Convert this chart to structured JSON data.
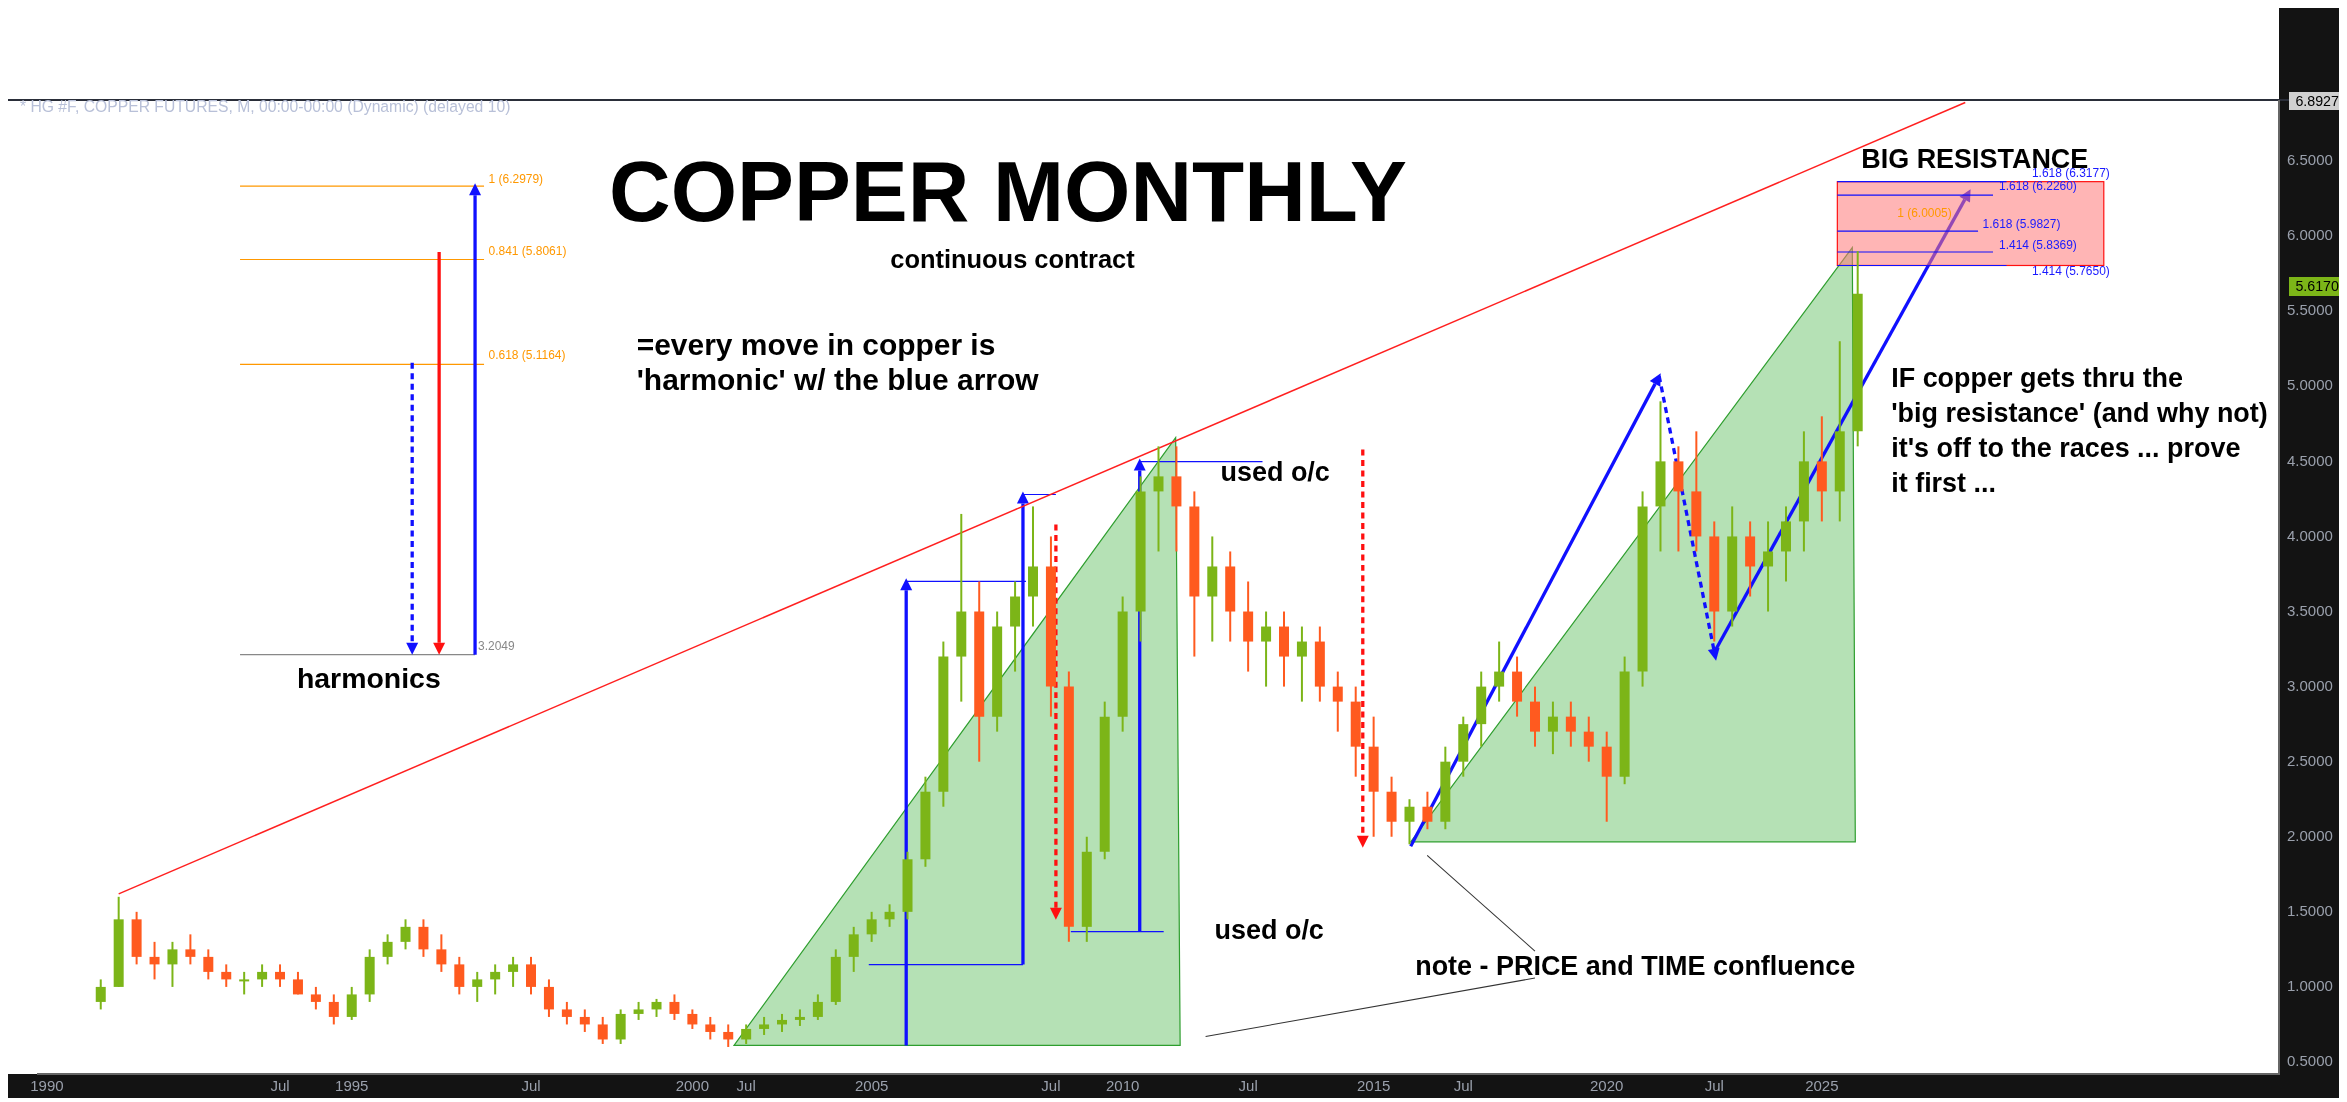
{
  "chart_data": {
    "type": "candlestick",
    "title": "COPPER MONTHLY",
    "subtitle": "continuous contract",
    "categories": [
      "1990",
      null,
      null,
      null,
      null,
      null,
      null,
      null,
      null,
      null,
      null,
      null,
      null,
      "Jul",
      null,
      null,
      null,
      "1995",
      null,
      null,
      null,
      null,
      null,
      null,
      null,
      null,
      null,
      "Jul",
      null,
      null,
      null,
      null,
      null,
      null,
      null,
      null,
      "2000",
      null,
      null,
      "Jul",
      null,
      null,
      null,
      null,
      null,
      null,
      "2005",
      null,
      null,
      null,
      null,
      null,
      null,
      null,
      null,
      null,
      "Jul",
      null,
      null,
      null,
      "2010",
      null,
      null,
      null,
      null,
      null,
      null,
      "Jul",
      null,
      null,
      null,
      null,
      null,
      null,
      "2015",
      null,
      null,
      null,
      null,
      "Jul",
      null,
      null,
      null,
      null,
      null,
      null,
      null,
      "2020",
      null,
      null,
      null,
      null,
      null,
      "Jul",
      null,
      null,
      null,
      null,
      null,
      "2025",
      null,
      null,
      null,
      null,
      null,
      null,
      null,
      null,
      null,
      null,
      null,
      null,
      null,
      null,
      null,
      null,
      null,
      null,
      null,
      null,
      null,
      null,
      null,
      null,
      null
    ],
    "ohlc": [
      null,
      null,
      null,
      [
        0.9,
        1.05,
        0.85,
        1.0
      ],
      [
        1.0,
        1.6,
        1.0,
        1.45
      ],
      [
        1.45,
        1.5,
        1.15,
        1.2
      ],
      [
        1.2,
        1.3,
        1.05,
        1.15
      ],
      [
        1.15,
        1.3,
        1.0,
        1.25
      ],
      [
        1.25,
        1.35,
        1.15,
        1.2
      ],
      [
        1.2,
        1.25,
        1.05,
        1.1
      ],
      [
        1.1,
        1.15,
        1.0,
        1.05
      ],
      [
        1.05,
        1.1,
        0.95,
        1.05
      ],
      [
        1.05,
        1.15,
        1.0,
        1.1
      ],
      [
        1.1,
        1.15,
        1.0,
        1.05
      ],
      [
        1.05,
        1.1,
        0.95,
        0.95
      ],
      [
        0.95,
        1.0,
        0.85,
        0.9
      ],
      [
        0.9,
        0.95,
        0.75,
        0.8
      ],
      [
        0.8,
        1.0,
        0.78,
        0.95
      ],
      [
        0.95,
        1.25,
        0.9,
        1.2
      ],
      [
        1.2,
        1.35,
        1.15,
        1.3
      ],
      [
        1.3,
        1.45,
        1.25,
        1.4
      ],
      [
        1.4,
        1.45,
        1.2,
        1.25
      ],
      [
        1.25,
        1.35,
        1.1,
        1.15
      ],
      [
        1.15,
        1.2,
        0.95,
        1.0
      ],
      [
        1.0,
        1.1,
        0.9,
        1.05
      ],
      [
        1.05,
        1.15,
        0.95,
        1.1
      ],
      [
        1.1,
        1.2,
        1.0,
        1.15
      ],
      [
        1.15,
        1.2,
        0.95,
        1.0
      ],
      [
        1.0,
        1.05,
        0.8,
        0.85
      ],
      [
        0.85,
        0.9,
        0.75,
        0.8
      ],
      [
        0.8,
        0.85,
        0.7,
        0.75
      ],
      [
        0.75,
        0.8,
        0.62,
        0.65
      ],
      [
        0.65,
        0.85,
        0.62,
        0.82
      ],
      [
        0.82,
        0.9,
        0.78,
        0.85
      ],
      [
        0.85,
        0.92,
        0.8,
        0.9
      ],
      [
        0.9,
        0.95,
        0.78,
        0.82
      ],
      [
        0.82,
        0.85,
        0.72,
        0.75
      ],
      [
        0.75,
        0.8,
        0.65,
        0.7
      ],
      [
        0.7,
        0.75,
        0.6,
        0.65
      ],
      [
        0.65,
        0.75,
        0.62,
        0.72
      ],
      [
        0.72,
        0.8,
        0.68,
        0.75
      ],
      [
        0.75,
        0.82,
        0.7,
        0.78
      ],
      [
        0.78,
        0.85,
        0.74,
        0.8
      ],
      [
        0.8,
        0.95,
        0.78,
        0.9
      ],
      [
        0.9,
        1.25,
        0.88,
        1.2
      ],
      [
        1.2,
        1.4,
        1.1,
        1.35
      ],
      [
        1.35,
        1.5,
        1.3,
        1.45
      ],
      [
        1.45,
        1.55,
        1.4,
        1.5
      ],
      [
        1.5,
        1.9,
        1.45,
        1.85
      ],
      [
        1.85,
        2.4,
        1.8,
        2.3
      ],
      [
        2.3,
        3.3,
        2.2,
        3.2
      ],
      [
        3.2,
        4.15,
        2.9,
        3.5
      ],
      [
        3.5,
        3.7,
        2.5,
        2.8
      ],
      [
        2.8,
        3.5,
        2.7,
        3.4
      ],
      [
        3.4,
        3.7,
        3.1,
        3.6
      ],
      [
        3.6,
        4.2,
        3.4,
        3.8
      ],
      [
        3.8,
        4.0,
        2.8,
        3.0
      ],
      [
        3.0,
        3.1,
        1.3,
        1.4
      ],
      [
        1.4,
        2.0,
        1.3,
        1.9
      ],
      [
        1.9,
        2.9,
        1.85,
        2.8
      ],
      [
        2.8,
        3.6,
        2.7,
        3.5
      ],
      [
        3.5,
        4.4,
        3.3,
        4.3
      ],
      [
        4.3,
        4.6,
        3.9,
        4.4
      ],
      [
        4.4,
        4.6,
        3.9,
        4.2
      ],
      [
        4.2,
        4.3,
        3.2,
        3.6
      ],
      [
        3.6,
        4.0,
        3.3,
        3.8
      ],
      [
        3.8,
        3.9,
        3.3,
        3.5
      ],
      [
        3.5,
        3.7,
        3.1,
        3.3
      ],
      [
        3.3,
        3.5,
        3.0,
        3.4
      ],
      [
        3.4,
        3.5,
        3.0,
        3.2
      ],
      [
        3.2,
        3.4,
        2.9,
        3.3
      ],
      [
        3.3,
        3.4,
        2.9,
        3.0
      ],
      [
        3.0,
        3.1,
        2.7,
        2.9
      ],
      [
        2.9,
        3.0,
        2.4,
        2.6
      ],
      [
        2.6,
        2.8,
        2.0,
        2.3
      ],
      [
        2.3,
        2.4,
        2.0,
        2.1
      ],
      [
        2.1,
        2.25,
        1.95,
        2.2
      ],
      [
        2.2,
        2.3,
        2.05,
        2.1
      ],
      [
        2.1,
        2.6,
        2.05,
        2.5
      ],
      [
        2.5,
        2.8,
        2.4,
        2.75
      ],
      [
        2.75,
        3.1,
        2.6,
        3.0
      ],
      [
        3.0,
        3.3,
        2.9,
        3.1
      ],
      [
        3.1,
        3.2,
        2.8,
        2.9
      ],
      [
        2.9,
        3.0,
        2.6,
        2.7
      ],
      [
        2.7,
        2.9,
        2.55,
        2.8
      ],
      [
        2.8,
        2.9,
        2.6,
        2.7
      ],
      [
        2.7,
        2.8,
        2.5,
        2.6
      ],
      [
        2.6,
        2.7,
        2.1,
        2.4
      ],
      [
        2.4,
        3.2,
        2.35,
        3.1
      ],
      [
        3.1,
        4.3,
        3.0,
        4.2
      ],
      [
        4.2,
        4.9,
        3.9,
        4.5
      ],
      [
        4.5,
        4.6,
        3.9,
        4.3
      ],
      [
        4.3,
        4.7,
        3.9,
        4.0
      ],
      [
        4.0,
        4.1,
        3.3,
        3.5
      ],
      [
        3.5,
        4.2,
        3.4,
        4.0
      ],
      [
        4.0,
        4.1,
        3.6,
        3.8
      ],
      [
        3.8,
        4.1,
        3.5,
        3.9
      ],
      [
        3.9,
        4.2,
        3.7,
        4.1
      ],
      [
        4.1,
        4.7,
        3.9,
        4.5
      ],
      [
        4.5,
        4.8,
        4.1,
        4.3
      ],
      [
        4.3,
        5.3,
        4.1,
        4.7
      ],
      [
        4.7,
        5.9,
        4.6,
        5.617
      ],
      null,
      null,
      null,
      null,
      null,
      null,
      null,
      null,
      null,
      null,
      null,
      null,
      null,
      null,
      null,
      null,
      null,
      null,
      null,
      null,
      null,
      null,
      null
    ],
    "series": [
      {
        "type": "line",
        "color": "#ff2020",
        "values": [
          null,
          null,
          null,
          null,
          1.62,
          null,
          null,
          null,
          null,
          null,
          null,
          null,
          null,
          null,
          null,
          null,
          null,
          null,
          null,
          null,
          null,
          null,
          null,
          null,
          null,
          null,
          null,
          null,
          null,
          null,
          null,
          null,
          null,
          null,
          null,
          null,
          null,
          null,
          null,
          null,
          null,
          null,
          null,
          null,
          null,
          null,
          null,
          null,
          null,
          null,
          null,
          null,
          null,
          null,
          null,
          null,
          null,
          null,
          null,
          null,
          null,
          null,
          null,
          null,
          null,
          null,
          null,
          null,
          null,
          null,
          null,
          null,
          null,
          null,
          null,
          null,
          null,
          null,
          null,
          null,
          null,
          null,
          null,
          null,
          null,
          null,
          null,
          null,
          null,
          null,
          null,
          null,
          null,
          null,
          null,
          null,
          null,
          null,
          null,
          null,
          null,
          null,
          null,
          null,
          null,
          null,
          null,
          6.89,
          null,
          null,
          null,
          null,
          null,
          null,
          null,
          null,
          null,
          null,
          null,
          null,
          null,
          null,
          null,
          null,
          null
        ]
      }
    ],
    "ylim": [
      0.42,
      6.9
    ],
    "yticks": [
      {
        "value": 0.5,
        "label": "0.5000"
      },
      {
        "value": 1,
        "label": "1.0000"
      },
      {
        "value": 1.5,
        "label": "1.5000"
      },
      {
        "value": 2,
        "label": "2.0000"
      },
      {
        "value": 2.5,
        "label": "2.5000"
      },
      {
        "value": 3,
        "label": "3.0000"
      },
      {
        "value": 3.5,
        "label": "3.5000"
      },
      {
        "value": 4,
        "label": "4.0000"
      },
      {
        "value": 4.5,
        "label": "4.5000"
      },
      {
        "value": 5,
        "label": "5.0000"
      },
      {
        "value": 5.5,
        "label": "5.5000"
      },
      {
        "value": 6,
        "label": "6.0000"
      },
      {
        "value": 6.5,
        "label": "6.5000"
      }
    ],
    "annotations": [
      "* HG #F, COPPER FUTURES, M, 00:00-00:00 (Dynamic) (delayed 10)",
      "=every move in copper is\n'harmonic' w/ the blue arrow",
      "harmonics",
      "1 (6.2979)",
      "0.841 (5.8061)",
      "0.618 (5.1164)",
      "3.2049",
      "used o/c",
      "used o/c",
      "BIG RESISTANCE",
      "1.618 (6.3177)",
      "1.618 (6.2260)",
      "1 (6.0005)",
      "1.618 (5.9827)",
      "1.414 (5.8369)",
      "1.414 (5.7650)",
      "IF copper gets thru the\n'big resistance' (and why not)\nit's off to the races ... prove\nit first ...",
      "note - PRICE and TIME confluence",
      "6.8927",
      "5.6170"
    ],
    "grid": false,
    "legend": false
  }
}
